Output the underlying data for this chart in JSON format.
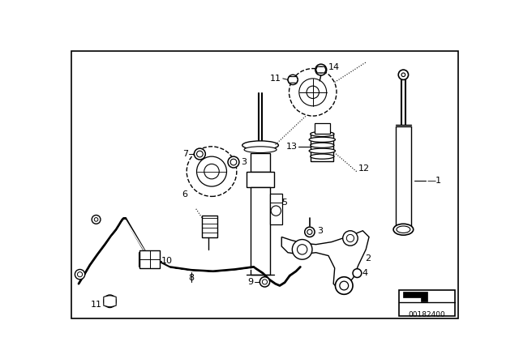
{
  "bg_color": "#ffffff",
  "line_color": "#000000",
  "fig_width": 6.4,
  "fig_height": 4.48,
  "dpi": 100,
  "part_id": "00182400"
}
